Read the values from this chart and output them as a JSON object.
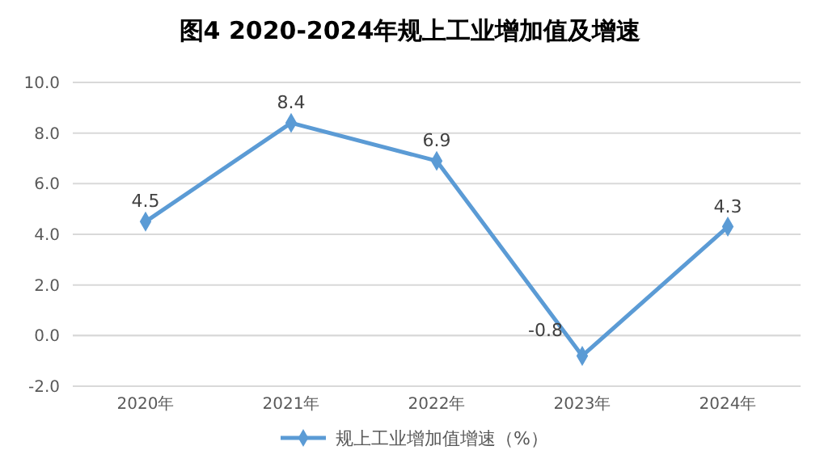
{
  "chart_data": {
    "type": "line",
    "title": "图4  2020-2024年规上工业增加值及增速",
    "categories": [
      "2020年",
      "2021年",
      "2022年",
      "2023年",
      "2024年"
    ],
    "series": [
      {
        "name": "规上工业增加值增速（%）",
        "color": "#5b9bd5",
        "values": [
          4.5,
          8.4,
          6.9,
          -0.8,
          4.3
        ]
      }
    ],
    "ylim": [
      -2,
      10
    ],
    "yticks": [
      {
        "value": -2,
        "label": "-2.0"
      },
      {
        "value": 0,
        "label": "0.0"
      },
      {
        "value": 2,
        "label": "2.0"
      },
      {
        "value": 4,
        "label": "4.0"
      },
      {
        "value": 6,
        "label": "6.0"
      },
      {
        "value": 8,
        "label": "8.0"
      },
      {
        "value": 10,
        "label": "10.0"
      }
    ],
    "grid": "y",
    "legend": "bottom",
    "marker": "diamond",
    "line_style": "solid",
    "data_labels": true
  }
}
